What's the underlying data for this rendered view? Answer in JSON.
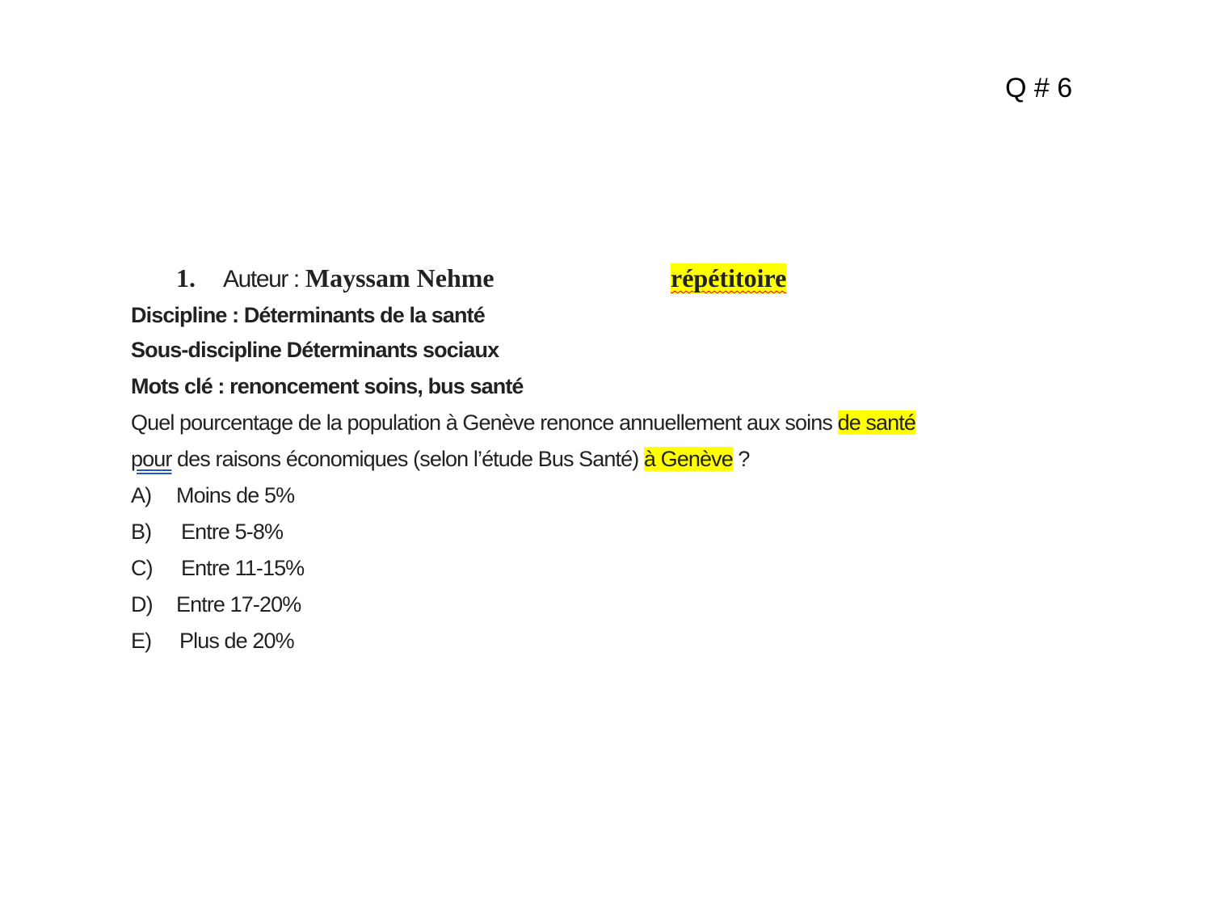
{
  "slide_label": "Q # 6",
  "author": {
    "number": "1.",
    "label": "Auteur :",
    "name": "Mayssam Nehme",
    "tag": "répétitoire"
  },
  "discipline": "Discipline : Déterminants de la santé",
  "sous_discipline": "Sous-discipline Déterminants sociaux",
  "mots_cle": "Mots clé : renoncement soins, bus santé",
  "question": {
    "part1": "Quel pourcentage de la population à Genève renonce annuellement aux soins ",
    "hl1": "de santé",
    "part2": "pour",
    "part3": " des raisons économiques (selon l’étude Bus Santé) ",
    "hl2": "à Genève",
    "part4": " ?"
  },
  "options": [
    {
      "letter": "A)",
      "text": "Moins de 5%"
    },
    {
      "letter": "B)",
      "text": "Entre 5-8%"
    },
    {
      "letter": "C)",
      "text": "Entre 11-15%"
    },
    {
      "letter": "D)",
      "text": "Entre 17-20%"
    },
    {
      "letter": "E)",
      "text": "Plus de 20%"
    }
  ],
  "colors": {
    "highlight": "#ffff00",
    "spell_error": "#e00000",
    "grammar_underline": "#2255cc"
  }
}
